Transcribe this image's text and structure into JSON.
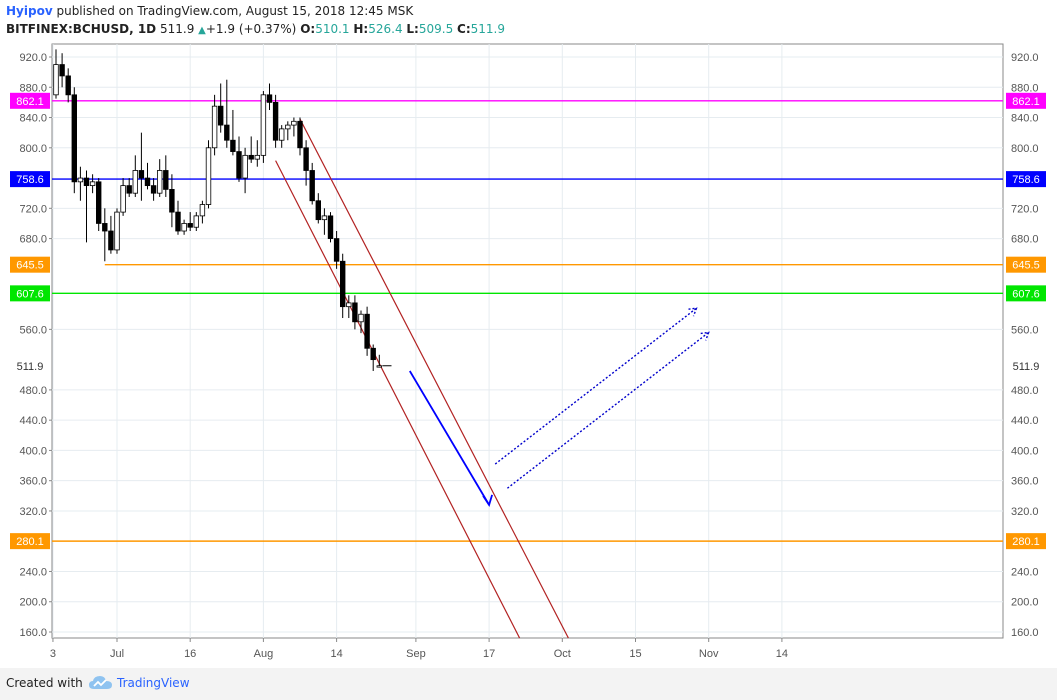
{
  "header": {
    "author": "Hyipov",
    "published_text": "published on TradingView.com, August 15, 2018 12:45 MSK",
    "symbol": "BITFINEX:BCHUSD, 1D",
    "last": "511.9",
    "change": "+1.9 (+0.37%)",
    "o_label": "O:",
    "o_value": "510.1",
    "h_label": "H:",
    "h_value": "526.4",
    "l_label": "L:",
    "l_value": "509.5",
    "c_label": "C:",
    "c_value": "511.9"
  },
  "footer": {
    "created_with": "Created with",
    "brand": "TradingView"
  },
  "colors": {
    "bull_fill": "#ffffff",
    "bear_fill": "#000000",
    "magenta": "#ff00ff",
    "blue": "#0000ff",
    "orange": "#ff9800",
    "green": "#00e600",
    "channel": "#b22222",
    "arrow": "#0000ff",
    "dotted": "#0000cc",
    "grid": "#e6ecf0"
  },
  "chart_data": {
    "type": "candlestick",
    "title": "",
    "y_range": [
      150,
      935
    ],
    "y_ticks": [
      920.0,
      880.0,
      840.0,
      800.0,
      720.0,
      680.0,
      560.0,
      480.0,
      440.0,
      400.0,
      360.0,
      320.0,
      240.0,
      200.0,
      160.0
    ],
    "y_tick_labels": [
      "920.0",
      "880.0",
      "840.0",
      "800.0",
      "720.0",
      "680.0",
      "560.0",
      "480.0",
      "440.0",
      "400.0",
      "360.0",
      "320.0",
      "240.0",
      "200.0",
      "160.0"
    ],
    "x_tick_labels": [
      "3",
      "Jul",
      "16",
      "Aug",
      "14",
      "Sep",
      "17",
      "Oct",
      "15",
      "Nov",
      "14"
    ],
    "x_tick_bar_index": [
      -0.5,
      10,
      22,
      34,
      46,
      59,
      71,
      83,
      95,
      107,
      119
    ],
    "last_price": 511.9,
    "last_price_label": "511.9",
    "horizontal_levels": [
      {
        "value": 862.1,
        "label": "862.1",
        "color_key": "magenta"
      },
      {
        "value": 758.6,
        "label": "758.6",
        "color_key": "blue"
      },
      {
        "value": 645.5,
        "label": "645.5",
        "color_key": "orange",
        "start_bar": 8
      },
      {
        "value": 607.6,
        "label": "607.6",
        "color_key": "green"
      },
      {
        "value": 280.1,
        "label": "280.1",
        "color_key": "orange"
      }
    ],
    "candles": [
      {
        "o": 870,
        "h": 930,
        "l": 865,
        "c": 910
      },
      {
        "o": 910,
        "h": 925,
        "l": 880,
        "c": 895
      },
      {
        "o": 895,
        "h": 905,
        "l": 860,
        "c": 870
      },
      {
        "o": 870,
        "h": 880,
        "l": 740,
        "c": 755
      },
      {
        "o": 755,
        "h": 775,
        "l": 730,
        "c": 760
      },
      {
        "o": 760,
        "h": 770,
        "l": 675,
        "c": 750
      },
      {
        "o": 750,
        "h": 765,
        "l": 740,
        "c": 755
      },
      {
        "o": 755,
        "h": 760,
        "l": 690,
        "c": 700
      },
      {
        "o": 700,
        "h": 720,
        "l": 650,
        "c": 690
      },
      {
        "o": 690,
        "h": 710,
        "l": 660,
        "c": 665
      },
      {
        "o": 665,
        "h": 720,
        "l": 660,
        "c": 715
      },
      {
        "o": 715,
        "h": 760,
        "l": 710,
        "c": 750
      },
      {
        "o": 750,
        "h": 760,
        "l": 735,
        "c": 740
      },
      {
        "o": 740,
        "h": 790,
        "l": 735,
        "c": 770
      },
      {
        "o": 770,
        "h": 820,
        "l": 730,
        "c": 760
      },
      {
        "o": 760,
        "h": 780,
        "l": 745,
        "c": 750
      },
      {
        "o": 750,
        "h": 760,
        "l": 730,
        "c": 740
      },
      {
        "o": 740,
        "h": 785,
        "l": 735,
        "c": 770
      },
      {
        "o": 770,
        "h": 790,
        "l": 735,
        "c": 745
      },
      {
        "o": 745,
        "h": 765,
        "l": 695,
        "c": 715
      },
      {
        "o": 715,
        "h": 730,
        "l": 685,
        "c": 690
      },
      {
        "o": 690,
        "h": 705,
        "l": 685,
        "c": 700
      },
      {
        "o": 700,
        "h": 715,
        "l": 690,
        "c": 695
      },
      {
        "o": 695,
        "h": 715,
        "l": 690,
        "c": 710
      },
      {
        "o": 710,
        "h": 730,
        "l": 700,
        "c": 725
      },
      {
        "o": 725,
        "h": 810,
        "l": 720,
        "c": 800
      },
      {
        "o": 800,
        "h": 870,
        "l": 790,
        "c": 855
      },
      {
        "o": 855,
        "h": 885,
        "l": 820,
        "c": 830
      },
      {
        "o": 830,
        "h": 890,
        "l": 800,
        "c": 810
      },
      {
        "o": 810,
        "h": 850,
        "l": 790,
        "c": 795
      },
      {
        "o": 795,
        "h": 815,
        "l": 755,
        "c": 760
      },
      {
        "o": 760,
        "h": 800,
        "l": 740,
        "c": 790
      },
      {
        "o": 790,
        "h": 815,
        "l": 780,
        "c": 785
      },
      {
        "o": 785,
        "h": 810,
        "l": 775,
        "c": 790
      },
      {
        "o": 790,
        "h": 875,
        "l": 780,
        "c": 870
      },
      {
        "o": 870,
        "h": 885,
        "l": 850,
        "c": 860
      },
      {
        "o": 860,
        "h": 870,
        "l": 800,
        "c": 810
      },
      {
        "o": 810,
        "h": 830,
        "l": 800,
        "c": 825
      },
      {
        "o": 825,
        "h": 835,
        "l": 810,
        "c": 830
      },
      {
        "o": 830,
        "h": 840,
        "l": 815,
        "c": 835
      },
      {
        "o": 835,
        "h": 840,
        "l": 790,
        "c": 800
      },
      {
        "o": 800,
        "h": 810,
        "l": 750,
        "c": 770
      },
      {
        "o": 770,
        "h": 780,
        "l": 725,
        "c": 730
      },
      {
        "o": 730,
        "h": 740,
        "l": 700,
        "c": 705
      },
      {
        "o": 705,
        "h": 720,
        "l": 685,
        "c": 710
      },
      {
        "o": 710,
        "h": 715,
        "l": 675,
        "c": 680
      },
      {
        "o": 680,
        "h": 690,
        "l": 640,
        "c": 650
      },
      {
        "o": 650,
        "h": 660,
        "l": 575,
        "c": 590
      },
      {
        "o": 590,
        "h": 605,
        "l": 575,
        "c": 595
      },
      {
        "o": 595,
        "h": 605,
        "l": 560,
        "c": 570
      },
      {
        "o": 570,
        "h": 585,
        "l": 555,
        "c": 580
      },
      {
        "o": 580,
        "h": 590,
        "l": 525,
        "c": 535
      },
      {
        "o": 535,
        "h": 540,
        "l": 505,
        "c": 520
      },
      {
        "o": 510.1,
        "h": 526.4,
        "l": 509.5,
        "c": 511.9
      }
    ]
  }
}
